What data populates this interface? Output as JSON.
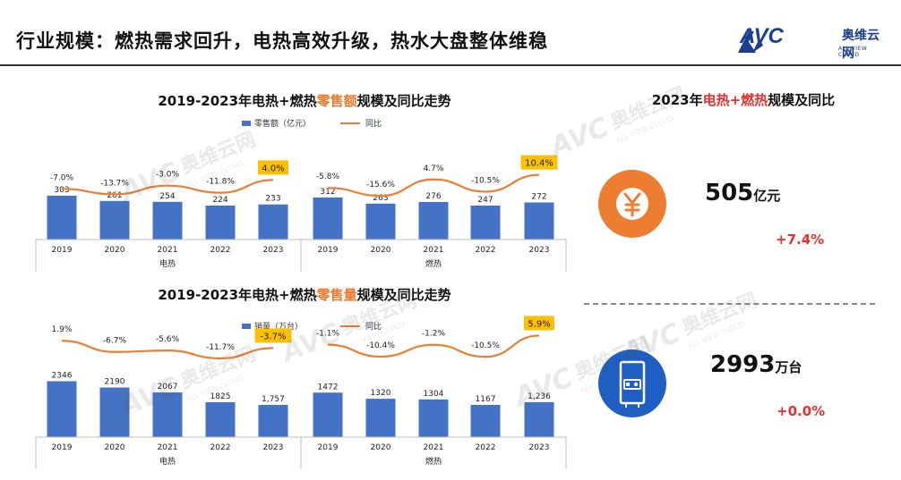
{
  "page": {
    "title": "行业规模：燃热需求回升，电热高效升级，热水大盘整体维稳"
  },
  "logo": {
    "letters": "AVC",
    "cn": "奥维云网",
    "en": "ALL VIEW CLOUD"
  },
  "watermark": {
    "cn": "奥维云网",
    "en": "ALL VIEW CLOUD"
  },
  "charts": {
    "sales": {
      "title_a": "2019-2023年电热+燃热",
      "title_hl": "零售额",
      "title_b": "规模及同比走势",
      "legend_bar": "零售额（亿元）",
      "legend_line": "同比"
    },
    "volume": {
      "title_a": "2019-2023年电热+燃热",
      "title_hl": "零售量",
      "title_b": "规模及同比走势",
      "legend_bar": "销量（万台）",
      "legend_line": "同比"
    }
  },
  "chart_data": [
    {
      "type": "bar",
      "title": "2019-2023年电热+燃热零售额规模及同比走势",
      "group_labels": [
        "电热",
        "燃热"
      ],
      "categories": [
        "2019",
        "2020",
        "2021",
        "2022",
        "2023",
        "2019",
        "2020",
        "2021",
        "2022",
        "2023"
      ],
      "series": [
        {
          "name": "零售额（亿元）",
          "values": [
            303,
            261,
            254,
            224,
            233,
            312,
            263,
            276,
            247,
            272
          ],
          "labels": [
            "303",
            "261",
            "254",
            "224",
            "233",
            "312",
            "263",
            "276",
            "247",
            "272"
          ]
        },
        {
          "name": "同比",
          "values": [
            -7.0,
            -13.7,
            -3.0,
            -11.8,
            4.0,
            -5.8,
            -15.6,
            4.7,
            -10.5,
            10.4
          ],
          "labels": [
            "-7.0%",
            "-13.7%",
            "-3.0%",
            "-11.8%",
            "4.0%",
            "-5.8%",
            "-15.6%",
            "4.7%",
            "-10.5%",
            "10.4%"
          ]
        }
      ],
      "highlight": [
        4,
        9
      ],
      "colors": {
        "bar": "#4472c4",
        "line": "#ed7d31",
        "highlight": "#ffc000"
      }
    },
    {
      "type": "bar",
      "title": "2019-2023年电热+燃热零售量规模及同比走势",
      "group_labels": [
        "电热",
        "燃热"
      ],
      "categories": [
        "2019",
        "2020",
        "2021",
        "2022",
        "2023",
        "2019",
        "2020",
        "2021",
        "2022",
        "2023"
      ],
      "series": [
        {
          "name": "销量（万台）",
          "values": [
            2346,
            2190,
            2067,
            1825,
            1757,
            1472,
            1320,
            1304,
            1167,
            1236
          ],
          "labels": [
            "2346",
            "2190",
            "2067",
            "1825",
            "1,757",
            "1472",
            "1320",
            "1304",
            "1167",
            "1,236"
          ]
        },
        {
          "name": "同比",
          "values": [
            1.9,
            -6.7,
            -5.6,
            -11.7,
            -3.7,
            -1.1,
            -10.4,
            -1.2,
            -10.5,
            5.9
          ],
          "labels": [
            "1.9%",
            "-6.7%",
            "-5.6%",
            "-11.7%",
            "-3.7%",
            "-1.1%",
            "-10.4%",
            "-1.2%",
            "-10.5%",
            "5.9%"
          ]
        }
      ],
      "highlight": [
        4,
        9
      ],
      "colors": {
        "bar": "#4472c4",
        "line": "#ed7d31",
        "highlight": "#ffc000"
      }
    }
  ],
  "summary": {
    "title_a": "2023年",
    "title_hl": "电热+燃热",
    "title_b": "规模及同比",
    "sales": {
      "value": "505",
      "unit": "亿元",
      "yoy": "+7.4%",
      "icon": "yuan-icon"
    },
    "volume": {
      "value": "2993",
      "unit": "万台",
      "yoy": "+0.0%",
      "icon": "water-heater-icon"
    }
  },
  "colors": {
    "orange": "#ed7d31",
    "blue": "#1f5fc4",
    "red": "#e8312e"
  }
}
